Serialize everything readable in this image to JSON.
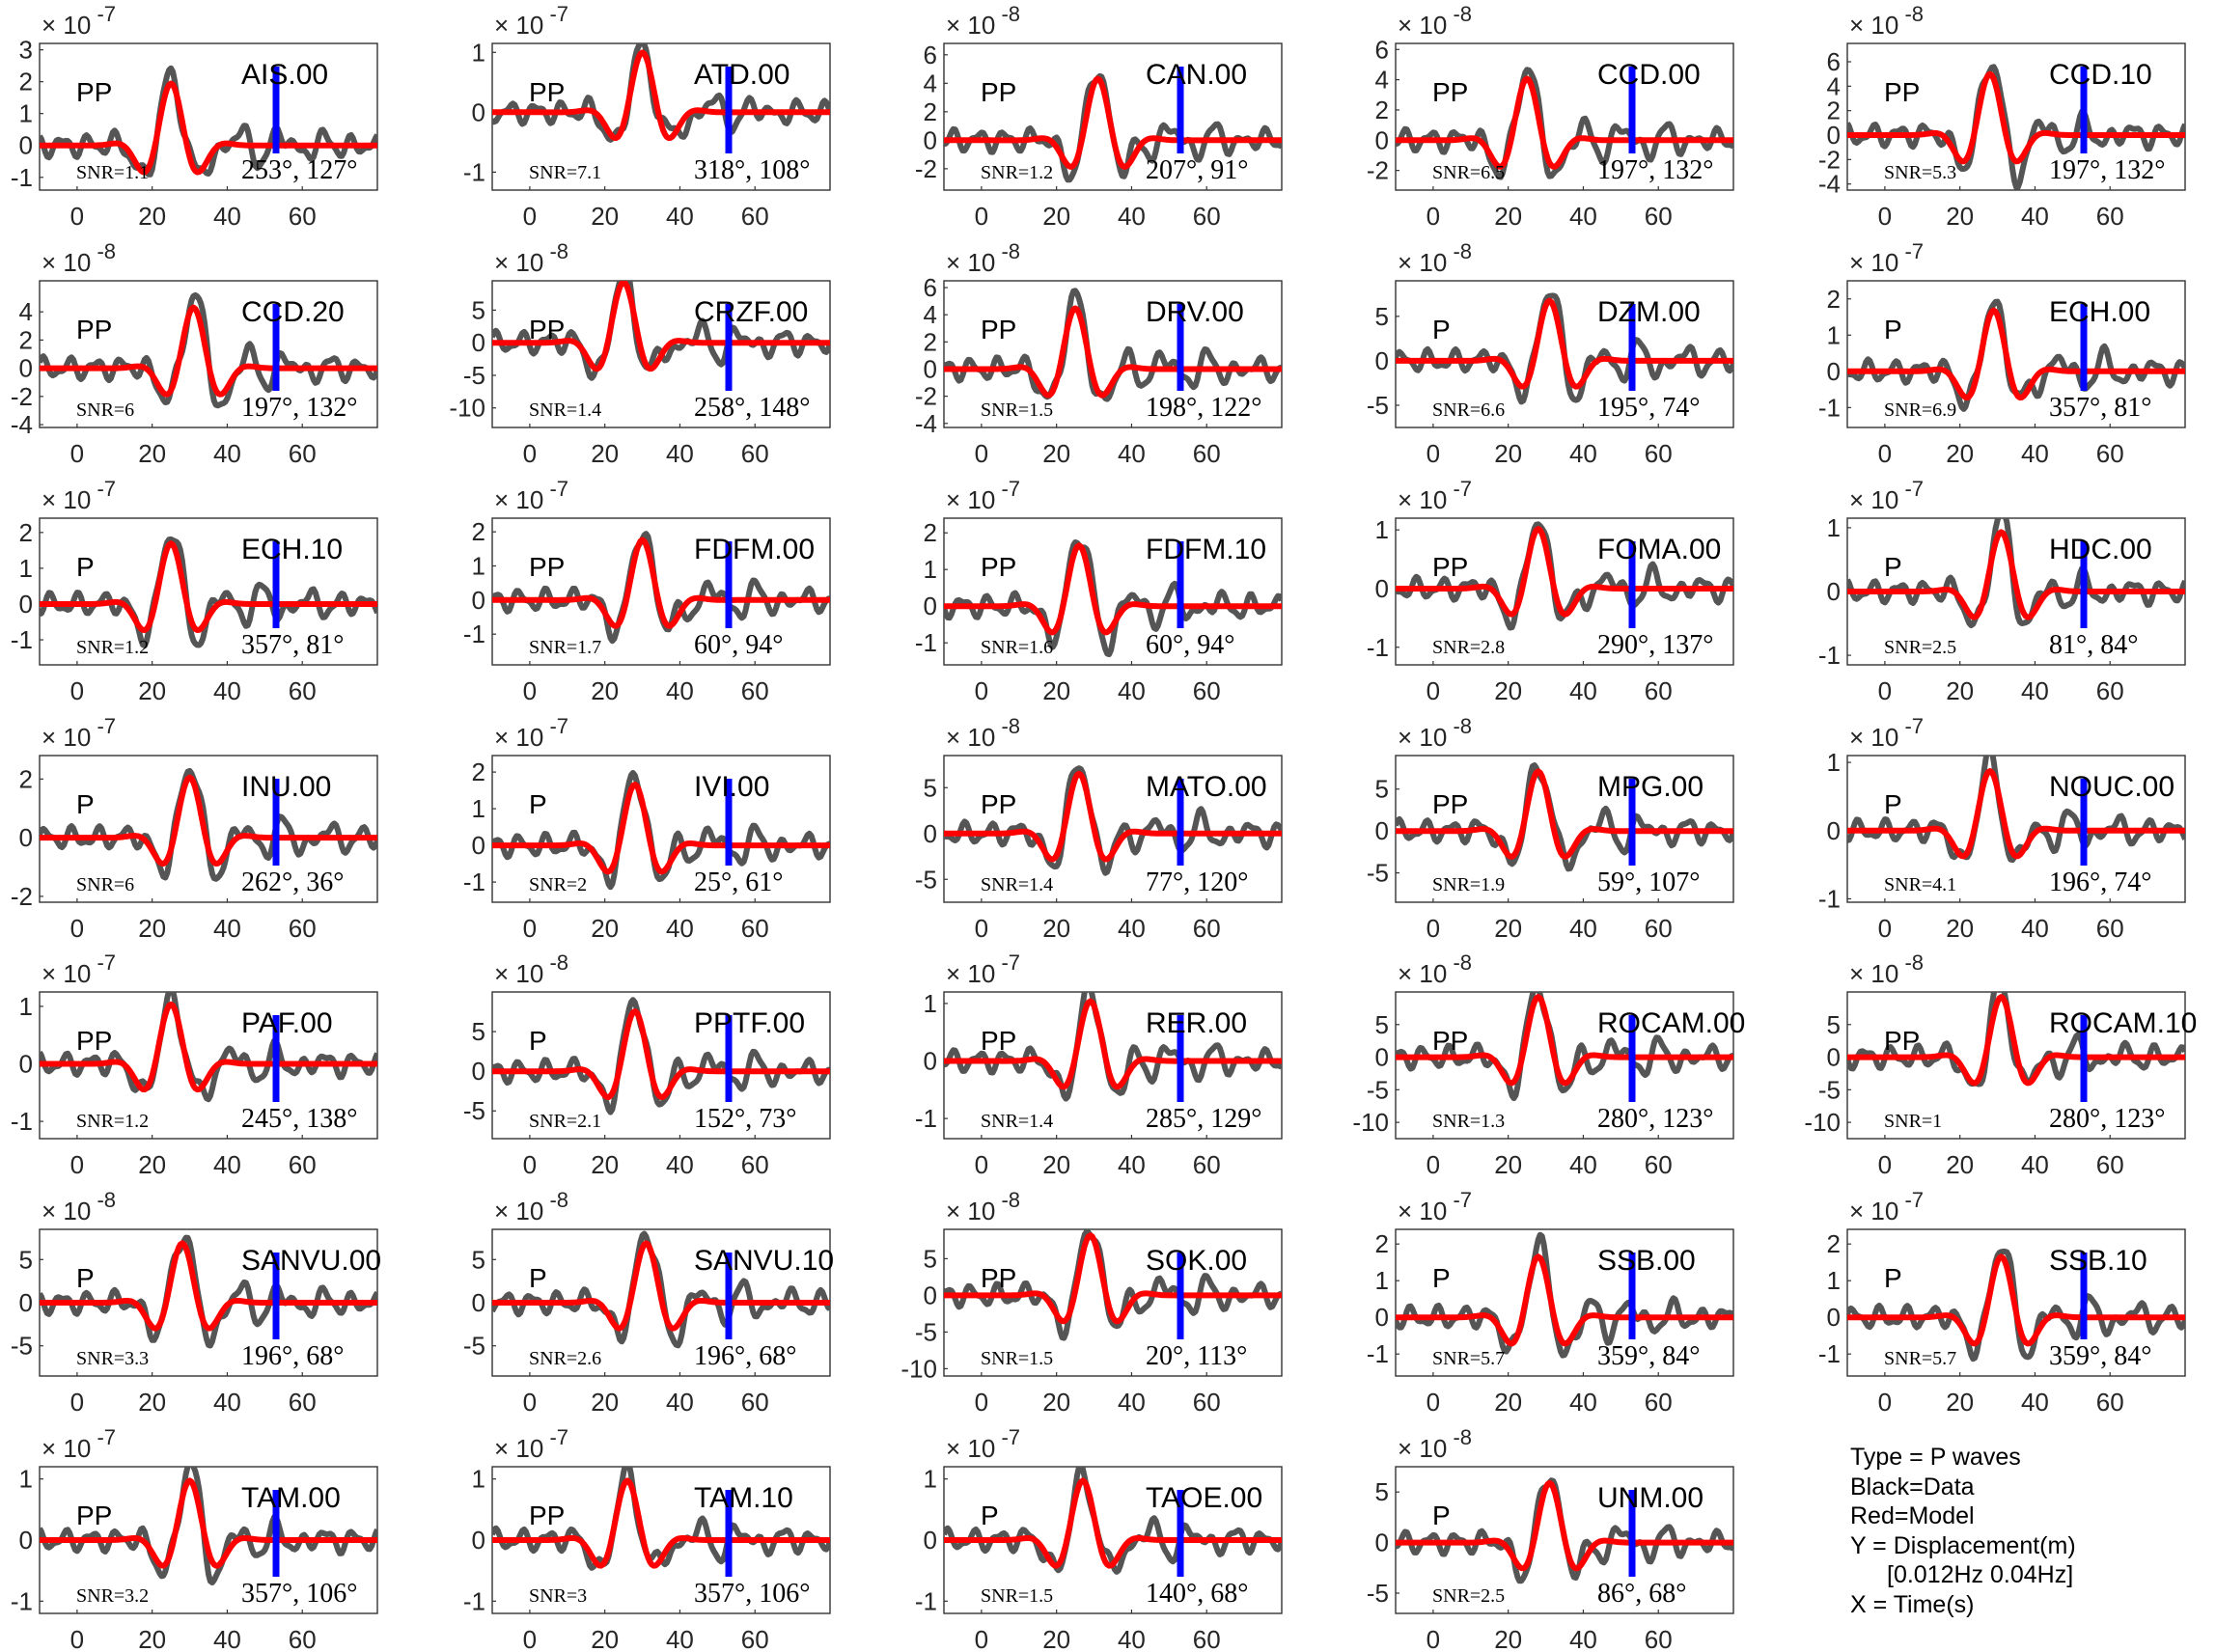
{
  "colors": {
    "data": "#555555",
    "model": "#ff0000",
    "marker": "#0000ff",
    "axes": "#333333",
    "tick_text": "#262626"
  },
  "legend": {
    "type_line": "Type = P waves",
    "data_line": "Black=Data",
    "model_line": "Red=Model",
    "y_line": "Y = Displacement(m)",
    "band_line": "[0.012Hz 0.04Hz]",
    "x_line": "X = Time(s)"
  },
  "chart_data": [
    {
      "type": "line",
      "station": "AIS.00",
      "phase": "PP",
      "snr": "SNR=1.1",
      "angles": "253°, 127°",
      "exp": "-7",
      "ylim": [
        -1.4,
        3.2
      ],
      "yticks": [
        -1,
        0,
        1,
        2,
        3
      ],
      "xlim": [
        -10,
        80
      ],
      "xticks": [
        0,
        20,
        40,
        60
      ],
      "marker_x": 53
    },
    {
      "type": "line",
      "station": "ATD.00",
      "phase": "PP",
      "snr": "SNR=7.1",
      "angles": "318°, 108°",
      "exp": "-7",
      "ylim": [
        -1.3,
        1.15
      ],
      "yticks": [
        -1,
        0,
        1
      ],
      "xlim": [
        -10,
        80
      ],
      "xticks": [
        0,
        20,
        40,
        60
      ],
      "marker_x": 53
    },
    {
      "type": "line",
      "station": "CAN.00",
      "phase": "PP",
      "snr": "SNR=1.2",
      "angles": "207°, 91°",
      "exp": "-8",
      "ylim": [
        -3.5,
        6.8
      ],
      "yticks": [
        -2,
        0,
        2,
        4,
        6
      ],
      "xlim": [
        -10,
        80
      ],
      "xticks": [
        0,
        20,
        40,
        60
      ],
      "marker_x": 53
    },
    {
      "type": "line",
      "station": "CCD.00",
      "phase": "PP",
      "snr": "SNR=6.5",
      "angles": "197°, 132°",
      "exp": "-8",
      "ylim": [
        -3.3,
        6.4
      ],
      "yticks": [
        -2,
        0,
        2,
        4,
        6
      ],
      "xlim": [
        -10,
        80
      ],
      "xticks": [
        0,
        20,
        40,
        60
      ],
      "marker_x": 53
    },
    {
      "type": "line",
      "station": "CCD.10",
      "phase": "PP",
      "snr": "SNR=5.3",
      "angles": "197°, 132°",
      "exp": "-8",
      "ylim": [
        -4.5,
        7.5
      ],
      "yticks": [
        -4,
        -2,
        0,
        2,
        4,
        6
      ],
      "xlim": [
        -10,
        80
      ],
      "xticks": [
        0,
        20,
        40,
        60
      ],
      "marker_x": 53
    },
    {
      "type": "line",
      "station": "CCD.20",
      "phase": "PP",
      "snr": "SNR=6",
      "angles": "197°, 132°",
      "exp": "-8",
      "ylim": [
        -4.2,
        6.2
      ],
      "yticks": [
        -4,
        -2,
        0,
        2,
        4
      ],
      "xlim": [
        -10,
        80
      ],
      "xticks": [
        0,
        20,
        40,
        60
      ],
      "marker_x": 53
    },
    {
      "type": "line",
      "station": "CRZF.00",
      "phase": "PP",
      "snr": "SNR=1.4",
      "angles": "258°, 148°",
      "exp": "-8",
      "ylim": [
        -13,
        9.5
      ],
      "yticks": [
        -10,
        -5,
        0,
        5
      ],
      "xlim": [
        -10,
        80
      ],
      "xticks": [
        0,
        20,
        40,
        60
      ],
      "marker_x": 53
    },
    {
      "type": "line",
      "station": "DRV.00",
      "phase": "PP",
      "snr": "SNR=1.5",
      "angles": "198°, 122°",
      "exp": "-8",
      "ylim": [
        -4.3,
        6.5
      ],
      "yticks": [
        -4,
        -2,
        0,
        2,
        4,
        6
      ],
      "xlim": [
        -10,
        80
      ],
      "xticks": [
        0,
        20,
        40,
        60
      ],
      "marker_x": 53
    },
    {
      "type": "line",
      "station": "DZM.00",
      "phase": "P",
      "snr": "SNR=6.6",
      "angles": "195°, 74°",
      "exp": "-8",
      "ylim": [
        -7.5,
        9
      ],
      "yticks": [
        -5,
        0,
        5
      ],
      "xlim": [
        -10,
        80
      ],
      "xticks": [
        0,
        20,
        40,
        60
      ],
      "marker_x": 53
    },
    {
      "type": "line",
      "station": "ECH.00",
      "phase": "P",
      "snr": "SNR=6.9",
      "angles": "357°, 81°",
      "exp": "-7",
      "ylim": [
        -1.55,
        2.5
      ],
      "yticks": [
        -1,
        0,
        1,
        2
      ],
      "xlim": [
        -10,
        80
      ],
      "xticks": [
        0,
        20,
        40,
        60
      ],
      "marker_x": 53
    },
    {
      "type": "line",
      "station": "ECH.10",
      "phase": "P",
      "snr": "SNR=1.2",
      "angles": "357°, 81°",
      "exp": "-7",
      "ylim": [
        -1.7,
        2.4
      ],
      "yticks": [
        -1,
        0,
        1,
        2
      ],
      "xlim": [
        -10,
        80
      ],
      "xticks": [
        0,
        20,
        40,
        60
      ],
      "marker_x": 53
    },
    {
      "type": "line",
      "station": "FDFM.00",
      "phase": "PP",
      "snr": "SNR=1.7",
      "angles": "60°, 94°",
      "exp": "-7",
      "ylim": [
        -1.9,
        2.4
      ],
      "yticks": [
        -1,
        0,
        1,
        2
      ],
      "xlim": [
        -10,
        80
      ],
      "xticks": [
        0,
        20,
        40,
        60
      ],
      "marker_x": 53
    },
    {
      "type": "line",
      "station": "FDFM.10",
      "phase": "PP",
      "snr": "SNR=1.6",
      "angles": "60°, 94°",
      "exp": "-7",
      "ylim": [
        -1.6,
        2.4
      ],
      "yticks": [
        -1,
        0,
        1,
        2
      ],
      "xlim": [
        -10,
        80
      ],
      "xticks": [
        0,
        20,
        40,
        60
      ],
      "marker_x": 53
    },
    {
      "type": "line",
      "station": "FOMA.00",
      "phase": "PP",
      "snr": "SNR=2.8",
      "angles": "290°, 137°",
      "exp": "-7",
      "ylim": [
        -1.3,
        1.2
      ],
      "yticks": [
        -1,
        0,
        1
      ],
      "xlim": [
        -10,
        80
      ],
      "xticks": [
        0,
        20,
        40,
        60
      ],
      "marker_x": 53
    },
    {
      "type": "line",
      "station": "HDC.00",
      "phase": "P",
      "snr": "SNR=2.5",
      "angles": "81°, 84°",
      "exp": "-7",
      "ylim": [
        -1.15,
        1.15
      ],
      "yticks": [
        -1,
        0,
        1
      ],
      "xlim": [
        -10,
        80
      ],
      "xticks": [
        0,
        20,
        40,
        60
      ],
      "marker_x": 53
    },
    {
      "type": "line",
      "station": "INU.00",
      "phase": "P",
      "snr": "SNR=6",
      "angles": "262°, 36°",
      "exp": "-7",
      "ylim": [
        -2.2,
        2.8
      ],
      "yticks": [
        -2,
        0,
        2
      ],
      "xlim": [
        -10,
        80
      ],
      "xticks": [
        0,
        20,
        40,
        60
      ],
      "marker_x": 53
    },
    {
      "type": "line",
      "station": "IVI.00",
      "phase": "P",
      "snr": "SNR=2",
      "angles": "25°, 61°",
      "exp": "-7",
      "ylim": [
        -1.55,
        2.45
      ],
      "yticks": [
        -1,
        0,
        1,
        2
      ],
      "xlim": [
        -10,
        80
      ],
      "xticks": [
        0,
        20,
        40,
        60
      ],
      "marker_x": 53
    },
    {
      "type": "line",
      "station": "MATO.00",
      "phase": "PP",
      "snr": "SNR=1.4",
      "angles": "77°, 120°",
      "exp": "-8",
      "ylim": [
        -7.5,
        8.5
      ],
      "yticks": [
        -5,
        0,
        5
      ],
      "xlim": [
        -10,
        80
      ],
      "xticks": [
        0,
        20,
        40,
        60
      ],
      "marker_x": 53
    },
    {
      "type": "line",
      "station": "MPG.00",
      "phase": "PP",
      "snr": "SNR=1.9",
      "angles": "59°, 107°",
      "exp": "-8",
      "ylim": [
        -8.5,
        9
      ],
      "yticks": [
        -5,
        0,
        5
      ],
      "xlim": [
        -10,
        80
      ],
      "xticks": [
        0,
        20,
        40,
        60
      ],
      "marker_x": 53
    },
    {
      "type": "line",
      "station": "NOUC.00",
      "phase": "P",
      "snr": "SNR=4.1",
      "angles": "196°, 74°",
      "exp": "-7",
      "ylim": [
        -1.05,
        1.1
      ],
      "yticks": [
        -1,
        0,
        1
      ],
      "xlim": [
        -10,
        80
      ],
      "xticks": [
        0,
        20,
        40,
        60
      ],
      "marker_x": 53
    },
    {
      "type": "line",
      "station": "PAF.00",
      "phase": "PP",
      "snr": "SNR=1.2",
      "angles": "245°, 138°",
      "exp": "-7",
      "ylim": [
        -1.3,
        1.25
      ],
      "yticks": [
        -1,
        0,
        1
      ],
      "xlim": [
        -10,
        80
      ],
      "xticks": [
        0,
        20,
        40,
        60
      ],
      "marker_x": 53
    },
    {
      "type": "line",
      "station": "PPTF.00",
      "phase": "P",
      "snr": "SNR=2.1",
      "angles": "152°, 73°",
      "exp": "-8",
      "ylim": [
        -8.5,
        10
      ],
      "yticks": [
        -5,
        0,
        5
      ],
      "xlim": [
        -10,
        80
      ],
      "xticks": [
        0,
        20,
        40,
        60
      ],
      "marker_x": 53
    },
    {
      "type": "line",
      "station": "RER.00",
      "phase": "PP",
      "snr": "SNR=1.4",
      "angles": "285°, 129°",
      "exp": "-7",
      "ylim": [
        -1.35,
        1.2
      ],
      "yticks": [
        -1,
        0,
        1
      ],
      "xlim": [
        -10,
        80
      ],
      "xticks": [
        0,
        20,
        40,
        60
      ],
      "marker_x": 53
    },
    {
      "type": "line",
      "station": "ROCAM.00",
      "phase": "PP",
      "snr": "SNR=1.3",
      "angles": "280°, 123°",
      "exp": "-8",
      "ylim": [
        -12.5,
        10
      ],
      "yticks": [
        -10,
        -5,
        0,
        5
      ],
      "xlim": [
        -10,
        80
      ],
      "xticks": [
        0,
        20,
        40,
        60
      ],
      "marker_x": 53
    },
    {
      "type": "line",
      "station": "ROCAM.10",
      "phase": "PP",
      "snr": "SNR=1",
      "angles": "280°, 123°",
      "exp": "-8",
      "ylim": [
        -12.5,
        10
      ],
      "yticks": [
        -10,
        -5,
        0,
        5
      ],
      "xlim": [
        -10,
        80
      ],
      "xticks": [
        0,
        20,
        40,
        60
      ],
      "marker_x": 53
    },
    {
      "type": "line",
      "station": "SANVU.00",
      "phase": "P",
      "snr": "SNR=3.3",
      "angles": "196°, 68°",
      "exp": "-8",
      "ylim": [
        -8.5,
        8.5
      ],
      "yticks": [
        -5,
        0,
        5
      ],
      "xlim": [
        -10,
        80
      ],
      "xticks": [
        0,
        20,
        40,
        60
      ],
      "marker_x": 53
    },
    {
      "type": "line",
      "station": "SANVU.10",
      "phase": "P",
      "snr": "SNR=2.6",
      "angles": "196°, 68°",
      "exp": "-8",
      "ylim": [
        -8.5,
        8.5
      ],
      "yticks": [
        -5,
        0,
        5
      ],
      "xlim": [
        -10,
        80
      ],
      "xticks": [
        0,
        20,
        40,
        60
      ],
      "marker_x": 53
    },
    {
      "type": "line",
      "station": "SOK.00",
      "phase": "PP",
      "snr": "SNR=1.5",
      "angles": "20°, 113°",
      "exp": "-8",
      "ylim": [
        -11,
        9
      ],
      "yticks": [
        -10,
        -5,
        0,
        5
      ],
      "xlim": [
        -10,
        80
      ],
      "xticks": [
        0,
        20,
        40,
        60
      ],
      "marker_x": 53
    },
    {
      "type": "line",
      "station": "SSB.00",
      "phase": "P",
      "snr": "SNR=5.7",
      "angles": "359°, 84°",
      "exp": "-7",
      "ylim": [
        -1.6,
        2.4
      ],
      "yticks": [
        -1,
        0,
        1,
        2
      ],
      "xlim": [
        -10,
        80
      ],
      "xticks": [
        0,
        20,
        40,
        60
      ],
      "marker_x": 53
    },
    {
      "type": "line",
      "station": "SSB.10",
      "phase": "P",
      "snr": "SNR=5.7",
      "angles": "359°, 84°",
      "exp": "-7",
      "ylim": [
        -1.6,
        2.4
      ],
      "yticks": [
        -1,
        0,
        1,
        2
      ],
      "xlim": [
        -10,
        80
      ],
      "xticks": [
        0,
        20,
        40,
        60
      ],
      "marker_x": 53
    },
    {
      "type": "line",
      "station": "TAM.00",
      "phase": "PP",
      "snr": "SNR=3.2",
      "angles": "357°, 106°",
      "exp": "-7",
      "ylim": [
        -1.2,
        1.2
      ],
      "yticks": [
        -1,
        0,
        1
      ],
      "xlim": [
        -10,
        80
      ],
      "xticks": [
        0,
        20,
        40,
        60
      ],
      "marker_x": 53
    },
    {
      "type": "line",
      "station": "TAM.10",
      "phase": "PP",
      "snr": "SNR=3",
      "angles": "357°, 106°",
      "exp": "-7",
      "ylim": [
        -1.2,
        1.2
      ],
      "yticks": [
        -1,
        0,
        1
      ],
      "xlim": [
        -10,
        80
      ],
      "xticks": [
        0,
        20,
        40,
        60
      ],
      "marker_x": 53
    },
    {
      "type": "line",
      "station": "TAOE.00",
      "phase": "P",
      "snr": "SNR=1.5",
      "angles": "140°, 68°",
      "exp": "-7",
      "ylim": [
        -1.2,
        1.2
      ],
      "yticks": [
        -1,
        0,
        1
      ],
      "xlim": [
        -10,
        80
      ],
      "xticks": [
        0,
        20,
        40,
        60
      ],
      "marker_x": 53
    },
    {
      "type": "line",
      "station": "UNM.00",
      "phase": "P",
      "snr": "SNR=2.5",
      "angles": "86°, 68°",
      "exp": "-8",
      "ylim": [
        -7,
        7.5
      ],
      "yticks": [
        -5,
        0,
        5
      ],
      "xlim": [
        -10,
        80
      ],
      "xticks": [
        0,
        20,
        40,
        60
      ],
      "marker_x": 53
    }
  ]
}
